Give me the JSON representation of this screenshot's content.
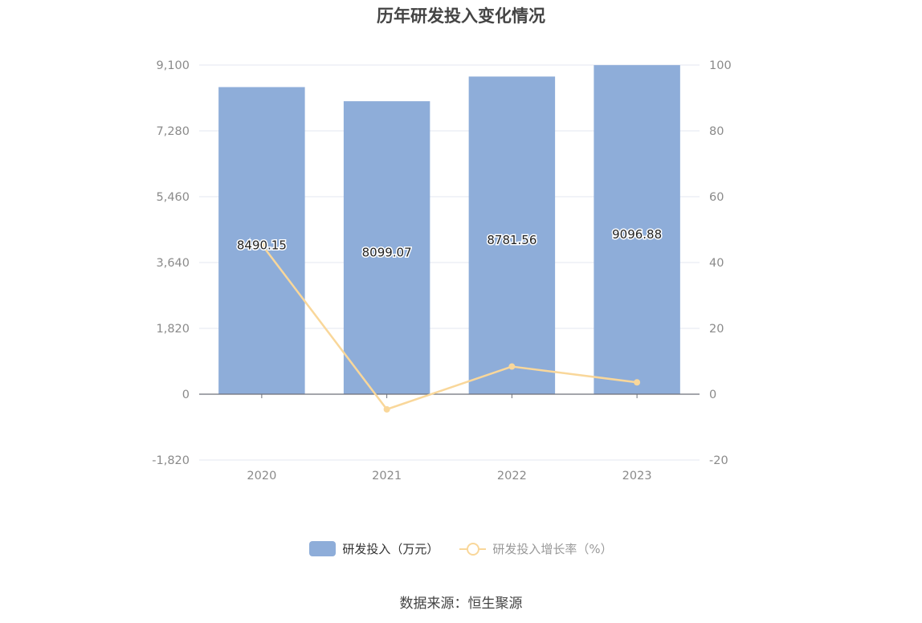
{
  "chart_data": {
    "type": "bar",
    "title": "历年研发投入变化情况",
    "categories": [
      "2020",
      "2021",
      "2022",
      "2023"
    ],
    "series": [
      {
        "name": "研发投入（万元）",
        "type": "bar",
        "axis": "left",
        "values": [
          8490.15,
          8099.07,
          8781.56,
          9096.88
        ],
        "value_labels": [
          "8490.15",
          "8099.07",
          "8781.56",
          "9096.88"
        ],
        "color": "#8eadd9"
      },
      {
        "name": "研发投入增长率（%）",
        "type": "line",
        "axis": "right",
        "values": [
          45.5,
          -4.6,
          8.4,
          3.6
        ],
        "color": "#f9d79a"
      }
    ],
    "y_left": {
      "ylim": [
        -1820,
        9100
      ],
      "ticks": [
        -1820,
        0,
        1820,
        3640,
        5460,
        7280,
        9100
      ],
      "tick_labels": [
        "-1,820",
        "0",
        "1,820",
        "3,640",
        "5,460",
        "7,280",
        "9,100"
      ]
    },
    "y_right": {
      "ylim": [
        -20,
        100
      ],
      "ticks": [
        -20,
        0,
        20,
        40,
        60,
        80,
        100
      ],
      "tick_labels": [
        "-20",
        "0",
        "20",
        "40",
        "60",
        "80",
        "100"
      ]
    },
    "grid": true,
    "legend_position": "bottom-center"
  },
  "source_text": "数据来源：恒生聚源",
  "colors": {
    "bar": "#8eadd9",
    "line": "#f9d79a",
    "grid": "#e3e7f0",
    "axis": "#6e7079"
  }
}
